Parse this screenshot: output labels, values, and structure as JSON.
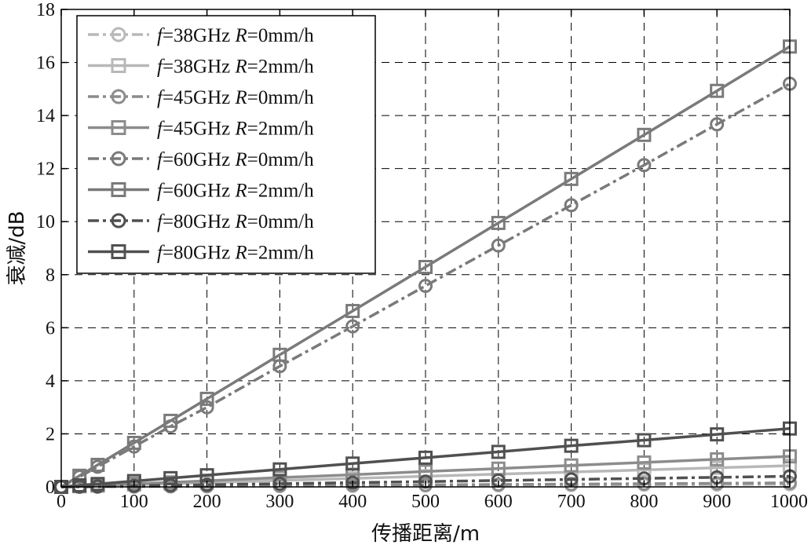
{
  "chart_data": {
    "type": "line",
    "title": "",
    "xlabel": "传播距离/m",
    "ylabel": "衰减/dB",
    "xlim": [
      0,
      1000
    ],
    "ylim": [
      0,
      18
    ],
    "x_ticks": [
      "0",
      "100",
      "200",
      "300",
      "400",
      "500",
      "600",
      "700",
      "800",
      "900",
      "1000"
    ],
    "y_ticks": [
      "0",
      "2",
      "4",
      "6",
      "8",
      "10",
      "12",
      "14",
      "16",
      "18"
    ],
    "grid": true,
    "legend_position": "top-left",
    "x": [
      0,
      25,
      50,
      100,
      150,
      200,
      300,
      400,
      500,
      600,
      700,
      800,
      900,
      1000
    ],
    "series": [
      {
        "name": "f=38GHz R=0mm/h",
        "name_parts": [
          "f",
          "=38GHz ",
          "R",
          "=0mm/h"
        ],
        "color": "#b8b8b8",
        "dash": "dashdot",
        "marker": "circle",
        "values": [
          0,
          0.003,
          0.005,
          0.01,
          0.015,
          0.02,
          0.03,
          0.04,
          0.05,
          0.06,
          0.07,
          0.08,
          0.09,
          0.1
        ]
      },
      {
        "name": "f=38GHz R=2mm/h",
        "name_parts": [
          "f",
          "=38GHz ",
          "R",
          "=2mm/h"
        ],
        "color": "#b8b8b8",
        "dash": "solid",
        "marker": "square",
        "values": [
          0,
          0.02,
          0.04,
          0.08,
          0.12,
          0.16,
          0.24,
          0.32,
          0.4,
          0.48,
          0.56,
          0.64,
          0.72,
          0.8
        ]
      },
      {
        "name": "f=45GHz R=0mm/h",
        "name_parts": [
          "f",
          "=45GHz ",
          "R",
          "=0mm/h"
        ],
        "color": "#8c8c8c",
        "dash": "dashdot",
        "marker": "circle",
        "values": [
          0,
          0.004,
          0.008,
          0.015,
          0.023,
          0.03,
          0.045,
          0.06,
          0.075,
          0.09,
          0.105,
          0.12,
          0.135,
          0.15
        ]
      },
      {
        "name": "f=45GHz R=2mm/h",
        "name_parts": [
          "f",
          "=45GHz ",
          "R",
          "=2mm/h"
        ],
        "color": "#8c8c8c",
        "dash": "solid",
        "marker": "square",
        "values": [
          0,
          0.03,
          0.06,
          0.12,
          0.17,
          0.23,
          0.35,
          0.46,
          0.58,
          0.69,
          0.81,
          0.92,
          1.04,
          1.15
        ]
      },
      {
        "name": "f=60GHz R=0mm/h",
        "name_parts": [
          "f",
          "=60GHz ",
          "R",
          "=0mm/h"
        ],
        "color": "#7a7a7a",
        "dash": "dashdot",
        "marker": "circle",
        "values": [
          0,
          0.38,
          0.76,
          1.52,
          2.28,
          3.0,
          4.55,
          6.05,
          7.58,
          9.1,
          10.62,
          12.13,
          13.67,
          15.2
        ]
      },
      {
        "name": "f=60GHz R=2mm/h",
        "name_parts": [
          "f",
          "=60GHz ",
          "R",
          "=2mm/h"
        ],
        "color": "#7a7a7a",
        "dash": "solid",
        "marker": "square",
        "values": [
          0,
          0.42,
          0.83,
          1.66,
          2.49,
          3.32,
          4.98,
          6.63,
          8.29,
          9.95,
          11.61,
          13.27,
          14.93,
          16.6
        ]
      },
      {
        "name": "f=80GHz R=0mm/h",
        "name_parts": [
          "f",
          "=80GHz ",
          "R",
          "=0mm/h"
        ],
        "color": "#505050",
        "dash": "dashdot",
        "marker": "circle",
        "values": [
          0,
          0.01,
          0.02,
          0.04,
          0.06,
          0.08,
          0.12,
          0.16,
          0.2,
          0.24,
          0.28,
          0.32,
          0.36,
          0.4
        ]
      },
      {
        "name": "f=80GHz R=2mm/h",
        "name_parts": [
          "f",
          "=80GHz ",
          "R",
          "=2mm/h"
        ],
        "color": "#505050",
        "dash": "solid",
        "marker": "square",
        "values": [
          0,
          0.06,
          0.11,
          0.22,
          0.33,
          0.44,
          0.66,
          0.88,
          1.1,
          1.32,
          1.55,
          1.76,
          1.98,
          2.2
        ]
      }
    ]
  }
}
